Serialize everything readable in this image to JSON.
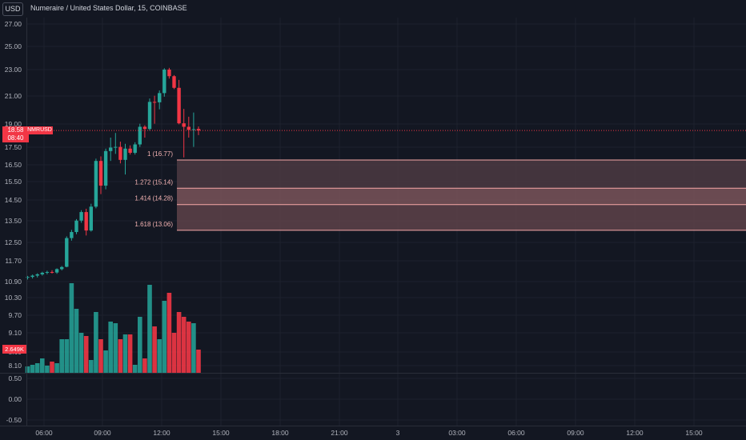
{
  "header": {
    "currency_button": "USD",
    "title": "Numeraire / United States Dollar, 15, COINBASE"
  },
  "price_scale": {
    "ticks": [
      "27.00",
      "25.00",
      "23.00",
      "21.00",
      "19.00",
      "17.50",
      "16.50",
      "15.50",
      "14.50",
      "13.50",
      "12.50",
      "11.70",
      "10.90",
      "10.30",
      "9.70",
      "9.10",
      "8.60",
      "8.10"
    ],
    "current_price": "18.58",
    "countdown": "08:40",
    "symbol": "NMRUSD"
  },
  "volume_scale": {
    "ticks": [
      "0.50",
      "0.00",
      "-0.50"
    ],
    "current_volume": "2.649K"
  },
  "time_axis": {
    "labels": [
      "06:00",
      "09:00",
      "12:00",
      "15:00",
      "18:00",
      "21:00",
      "3",
      "03:00",
      "06:00",
      "09:00",
      "12:00",
      "15:00"
    ]
  },
  "fibonacci": {
    "levels": [
      {
        "label": "1 (16.77)",
        "ratio": 1,
        "price": 16.77
      },
      {
        "label": "1.272 (15.14)",
        "ratio": 1.272,
        "price": 15.14
      },
      {
        "label": "1.414 (14.28)",
        "ratio": 1.414,
        "price": 14.28
      },
      {
        "label": "1.618 (13.06)",
        "ratio": 1.618,
        "price": 13.06
      }
    ],
    "zone_colors": [
      "#4c3a42",
      "#7a5359",
      "#5e4249"
    ],
    "line_color": "#f7a8a8",
    "label_color": "#f4b3b3"
  },
  "colors": {
    "background": "#131722",
    "up": "#26a69a",
    "down": "#f23645",
    "text": "#b2b5be",
    "grid": "#1e222d"
  },
  "chart_data": {
    "type": "candlestick",
    "interval": "15",
    "x_start": "05:30",
    "candles": [
      {
        "o": 11.05,
        "h": 11.12,
        "l": 10.98,
        "c": 11.08,
        "v": 8
      },
      {
        "o": 11.08,
        "h": 11.17,
        "l": 11.02,
        "c": 11.13,
        "v": 10
      },
      {
        "o": 11.13,
        "h": 11.22,
        "l": 11.06,
        "c": 11.18,
        "v": 12
      },
      {
        "o": 11.18,
        "h": 11.28,
        "l": 11.13,
        "c": 11.24,
        "v": 18
      },
      {
        "o": 11.24,
        "h": 11.32,
        "l": 11.18,
        "c": 11.27,
        "v": 9
      },
      {
        "o": 11.27,
        "h": 11.34,
        "l": 11.21,
        "c": 11.25,
        "v": 14
      },
      {
        "o": 11.25,
        "h": 11.41,
        "l": 11.2,
        "c": 11.38,
        "v": 12
      },
      {
        "o": 11.38,
        "h": 11.5,
        "l": 11.33,
        "c": 11.46,
        "v": 42
      },
      {
        "o": 11.47,
        "h": 12.78,
        "l": 11.45,
        "c": 12.7,
        "v": 42
      },
      {
        "o": 12.7,
        "h": 13.08,
        "l": 12.58,
        "c": 12.98,
        "v": 112
      },
      {
        "o": 12.98,
        "h": 13.58,
        "l": 12.88,
        "c": 13.51,
        "v": 80
      },
      {
        "o": 13.51,
        "h": 14.01,
        "l": 13.41,
        "c": 13.92,
        "v": 50
      },
      {
        "o": 13.92,
        "h": 14.08,
        "l": 12.82,
        "c": 13.05,
        "v": 46
      },
      {
        "o": 13.05,
        "h": 14.32,
        "l": 13.0,
        "c": 14.18,
        "v": 16
      },
      {
        "o": 14.18,
        "h": 16.85,
        "l": 14.1,
        "c": 16.72,
        "v": 76
      },
      {
        "o": 16.72,
        "h": 16.98,
        "l": 14.82,
        "c": 15.28,
        "v": 42
      },
      {
        "o": 15.28,
        "h": 17.42,
        "l": 15.08,
        "c": 17.28,
        "v": 28
      },
      {
        "o": 17.28,
        "h": 18.12,
        "l": 16.72,
        "c": 17.48,
        "v": 64
      },
      {
        "o": 17.48,
        "h": 18.42,
        "l": 17.12,
        "c": 17.52,
        "v": 62
      },
      {
        "o": 17.52,
        "h": 17.86,
        "l": 16.58,
        "c": 16.78,
        "v": 42
      },
      {
        "o": 16.78,
        "h": 17.72,
        "l": 15.92,
        "c": 17.42,
        "v": 48
      },
      {
        "o": 17.42,
        "h": 17.62,
        "l": 17.08,
        "c": 17.18,
        "v": 48
      },
      {
        "o": 17.18,
        "h": 17.82,
        "l": 17.08,
        "c": 17.68,
        "v": 10
      },
      {
        "o": 17.68,
        "h": 19.02,
        "l": 17.52,
        "c": 18.82,
        "v": 70
      },
      {
        "o": 18.82,
        "h": 18.92,
        "l": 18.12,
        "c": 18.68,
        "v": 18
      },
      {
        "o": 18.68,
        "h": 20.82,
        "l": 18.58,
        "c": 20.58,
        "v": 110
      },
      {
        "o": 20.58,
        "h": 21.02,
        "l": 19.02,
        "c": 20.55,
        "v": 58
      },
      {
        "o": 20.55,
        "h": 21.42,
        "l": 20.05,
        "c": 21.22,
        "v": 42
      },
      {
        "o": 21.22,
        "h": 23.12,
        "l": 20.95,
        "c": 23.0,
        "v": 90
      },
      {
        "o": 23.0,
        "h": 23.15,
        "l": 22.32,
        "c": 22.5,
        "v": 100
      },
      {
        "o": 22.5,
        "h": 22.58,
        "l": 21.52,
        "c": 21.62,
        "v": 50
      },
      {
        "o": 21.62,
        "h": 22.22,
        "l": 18.98,
        "c": 19.05,
        "v": 76
      },
      {
        "o": 19.05,
        "h": 20.08,
        "l": 16.92,
        "c": 18.82,
        "v": 70
      },
      {
        "o": 18.82,
        "h": 19.52,
        "l": 18.12,
        "c": 18.62,
        "v": 64
      },
      {
        "o": 18.62,
        "h": 19.82,
        "l": 17.52,
        "c": 18.66,
        "v": 62
      },
      {
        "o": 18.68,
        "h": 18.84,
        "l": 18.28,
        "c": 18.58,
        "v": 29
      }
    ]
  }
}
